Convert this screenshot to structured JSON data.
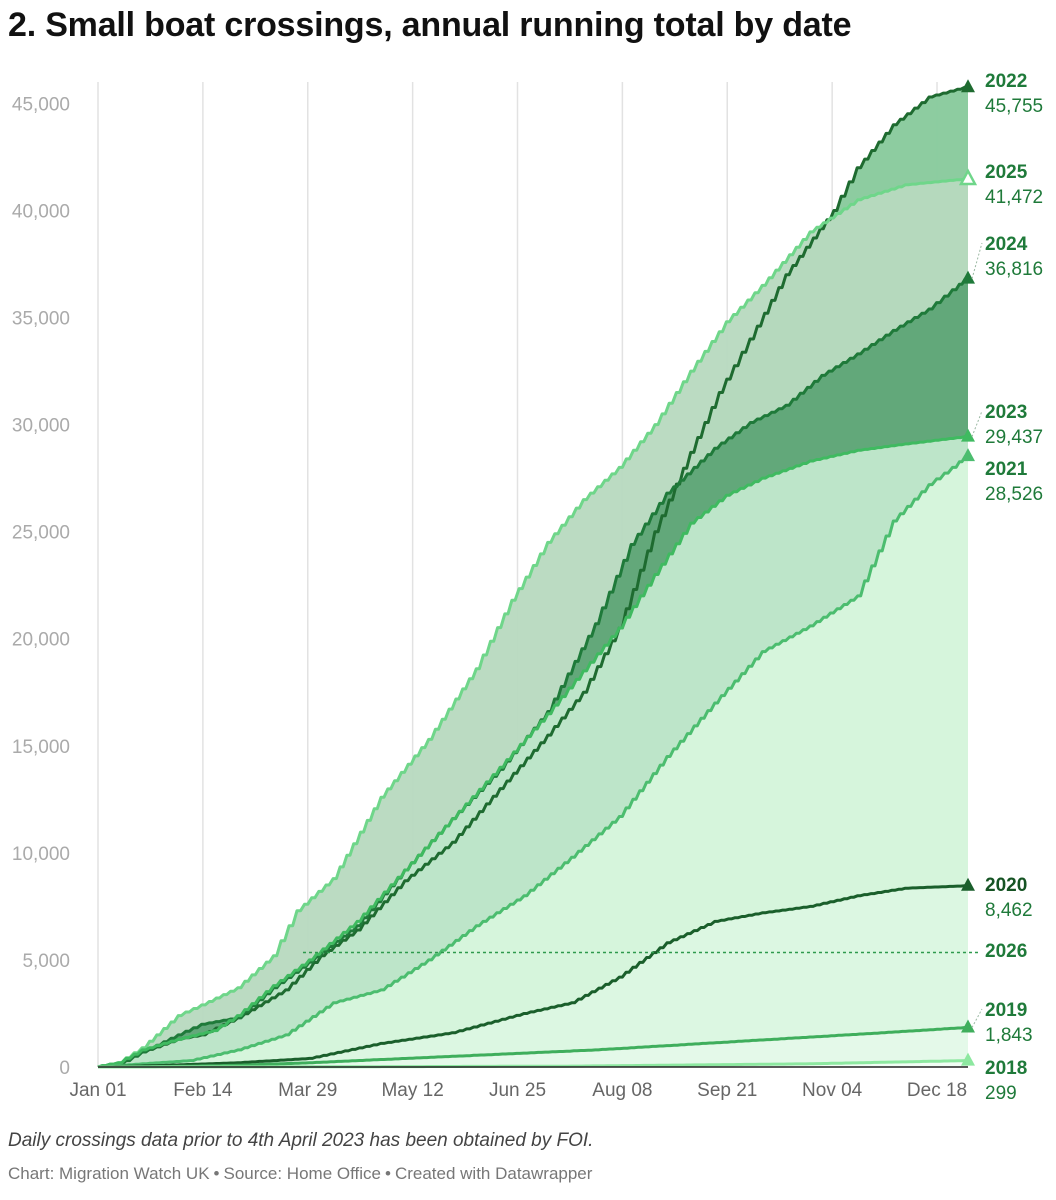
{
  "title": "2. Small boat crossings, annual running total by date",
  "note": "Daily crossings data prior to 4th April 2023 has been obtained by FOI.",
  "credit": {
    "chart": "Chart: Migration Watch UK",
    "source": "Source: Home Office",
    "tool": "Created with Datawrapper",
    "separator": "•"
  },
  "chart_data": {
    "type": "area",
    "title": "2. Small boat crossings, annual running total by date",
    "xlabel": "",
    "ylabel": "",
    "x_domain_days": [
      0,
      365
    ],
    "ylim": [
      0,
      46000
    ],
    "y_ticks": [
      0,
      5000,
      10000,
      15000,
      20000,
      25000,
      30000,
      35000,
      40000,
      45000
    ],
    "y_tick_labels": [
      "0",
      "5,000",
      "10,000",
      "15,000",
      "20,000",
      "25,000",
      "30,000",
      "35,000",
      "40,000",
      "45,000"
    ],
    "x_ticks": [
      0,
      44,
      88,
      132,
      176,
      220,
      264,
      308,
      352
    ],
    "x_tick_labels": [
      "Jan 01",
      "Feb 14",
      "Mar 29",
      "May 12",
      "Jun 25",
      "Aug 08",
      "Sep 21",
      "Nov 04",
      "Dec 18"
    ],
    "grid": "vertical",
    "series": [
      {
        "name": "2022",
        "final_label": "45,755",
        "color": "#1e6b30",
        "fill": "#87c99b",
        "marker": "filled",
        "points": [
          [
            0,
            0
          ],
          [
            10,
            150
          ],
          [
            20,
            700
          ],
          [
            35,
            1300
          ],
          [
            45,
            1500
          ],
          [
            60,
            2300
          ],
          [
            80,
            3600
          ],
          [
            95,
            5200
          ],
          [
            110,
            6400
          ],
          [
            130,
            8700
          ],
          [
            150,
            10500
          ],
          [
            170,
            13000
          ],
          [
            190,
            15500
          ],
          [
            205,
            17500
          ],
          [
            220,
            20500
          ],
          [
            235,
            25000
          ],
          [
            250,
            28700
          ],
          [
            262,
            31500
          ],
          [
            275,
            34000
          ],
          [
            290,
            37000
          ],
          [
            310,
            40000
          ],
          [
            320,
            42000
          ],
          [
            335,
            44000
          ],
          [
            350,
            45300
          ],
          [
            365,
            45755
          ]
        ]
      },
      {
        "name": "2025",
        "final_label": "41,472",
        "color": "#6fd68a",
        "fill": "#b7d9bf",
        "marker": "hollow",
        "points": [
          [
            0,
            0
          ],
          [
            10,
            200
          ],
          [
            20,
            900
          ],
          [
            35,
            2400
          ],
          [
            45,
            2900
          ],
          [
            60,
            3700
          ],
          [
            75,
            5200
          ],
          [
            85,
            7300
          ],
          [
            100,
            8800
          ],
          [
            120,
            12600
          ],
          [
            140,
            15300
          ],
          [
            160,
            18600
          ],
          [
            175,
            21800
          ],
          [
            190,
            24500
          ],
          [
            205,
            26500
          ],
          [
            220,
            28000
          ],
          [
            235,
            30000
          ],
          [
            250,
            32500
          ],
          [
            265,
            34800
          ],
          [
            280,
            36500
          ],
          [
            300,
            39000
          ],
          [
            320,
            40500
          ],
          [
            340,
            41200
          ],
          [
            365,
            41472
          ]
        ]
      },
      {
        "name": "2024",
        "final_label": "36,816",
        "color": "#1f7a3a",
        "fill": "#5ea576",
        "marker": "filled",
        "points": [
          [
            0,
            0
          ],
          [
            10,
            100
          ],
          [
            20,
            700
          ],
          [
            35,
            1500
          ],
          [
            45,
            2000
          ],
          [
            60,
            2300
          ],
          [
            75,
            3700
          ],
          [
            90,
            4900
          ],
          [
            110,
            6600
          ],
          [
            130,
            9200
          ],
          [
            150,
            11600
          ],
          [
            170,
            13900
          ],
          [
            190,
            16600
          ],
          [
            210,
            20700
          ],
          [
            225,
            24400
          ],
          [
            240,
            26800
          ],
          [
            260,
            28900
          ],
          [
            275,
            30100
          ],
          [
            290,
            30900
          ],
          [
            305,
            32300
          ],
          [
            320,
            33300
          ],
          [
            335,
            34400
          ],
          [
            350,
            35400
          ],
          [
            360,
            36300
          ],
          [
            365,
            36816
          ]
        ]
      },
      {
        "name": "2023",
        "final_label": "29,437",
        "color": "#3fba60",
        "fill": "#c2e8cd",
        "marker": "filled",
        "points": [
          [
            0,
            0
          ],
          [
            10,
            200
          ],
          [
            20,
            800
          ],
          [
            35,
            1300
          ],
          [
            50,
            1700
          ],
          [
            60,
            2400
          ],
          [
            75,
            3800
          ],
          [
            90,
            5000
          ],
          [
            110,
            6800
          ],
          [
            130,
            9200
          ],
          [
            150,
            11600
          ],
          [
            170,
            14000
          ],
          [
            190,
            16500
          ],
          [
            205,
            18500
          ],
          [
            220,
            20500
          ],
          [
            235,
            23000
          ],
          [
            250,
            25400
          ],
          [
            265,
            26700
          ],
          [
            280,
            27500
          ],
          [
            300,
            28300
          ],
          [
            320,
            28800
          ],
          [
            340,
            29100
          ],
          [
            365,
            29437
          ]
        ]
      },
      {
        "name": "2021",
        "final_label": "28,526",
        "color": "#4cbd6f",
        "fill": "#d7f5dd",
        "marker": "filled",
        "points": [
          [
            0,
            0
          ],
          [
            20,
            150
          ],
          [
            40,
            300
          ],
          [
            60,
            800
          ],
          [
            80,
            1500
          ],
          [
            100,
            3000
          ],
          [
            120,
            3600
          ],
          [
            140,
            5000
          ],
          [
            160,
            6600
          ],
          [
            180,
            8000
          ],
          [
            200,
            9800
          ],
          [
            220,
            11700
          ],
          [
            240,
            14500
          ],
          [
            260,
            17000
          ],
          [
            280,
            19400
          ],
          [
            300,
            20600
          ],
          [
            320,
            22000
          ],
          [
            335,
            25500
          ],
          [
            350,
            27200
          ],
          [
            360,
            28000
          ],
          [
            365,
            28526
          ]
        ]
      },
      {
        "name": "2020",
        "final_label": "8,462",
        "color": "#1a5f2b",
        "fill": "#dcf7e2",
        "marker": "filled",
        "points": [
          [
            0,
            0
          ],
          [
            30,
            80
          ],
          [
            60,
            200
          ],
          [
            90,
            400
          ],
          [
            120,
            1100
          ],
          [
            150,
            1600
          ],
          [
            180,
            2500
          ],
          [
            200,
            3000
          ],
          [
            220,
            4200
          ],
          [
            240,
            5800
          ],
          [
            260,
            6800
          ],
          [
            280,
            7200
          ],
          [
            300,
            7500
          ],
          [
            320,
            8000
          ],
          [
            340,
            8350
          ],
          [
            365,
            8462
          ]
        ]
      },
      {
        "name": "2019",
        "final_label": "1,843",
        "color": "#3fae5c",
        "fill": "#e4f9e9",
        "marker": "filled",
        "points": [
          [
            0,
            0
          ],
          [
            30,
            20
          ],
          [
            60,
            80
          ],
          [
            90,
            200
          ],
          [
            120,
            350
          ],
          [
            150,
            500
          ],
          [
            180,
            650
          ],
          [
            210,
            800
          ],
          [
            240,
            1000
          ],
          [
            270,
            1200
          ],
          [
            300,
            1400
          ],
          [
            330,
            1600
          ],
          [
            365,
            1843
          ]
        ]
      },
      {
        "name": "2018",
        "final_label": "299",
        "color": "#8de8a0",
        "fill": "#f1fdf4",
        "marker": "filled",
        "points": [
          [
            0,
            0
          ],
          [
            100,
            10
          ],
          [
            200,
            40
          ],
          [
            300,
            150
          ],
          [
            330,
            220
          ],
          [
            365,
            299
          ]
        ]
      },
      {
        "name": "2026",
        "final_label": "",
        "color": "#2e9a4d",
        "fill": "none",
        "marker": "none",
        "reference_value": 5350
      }
    ]
  }
}
